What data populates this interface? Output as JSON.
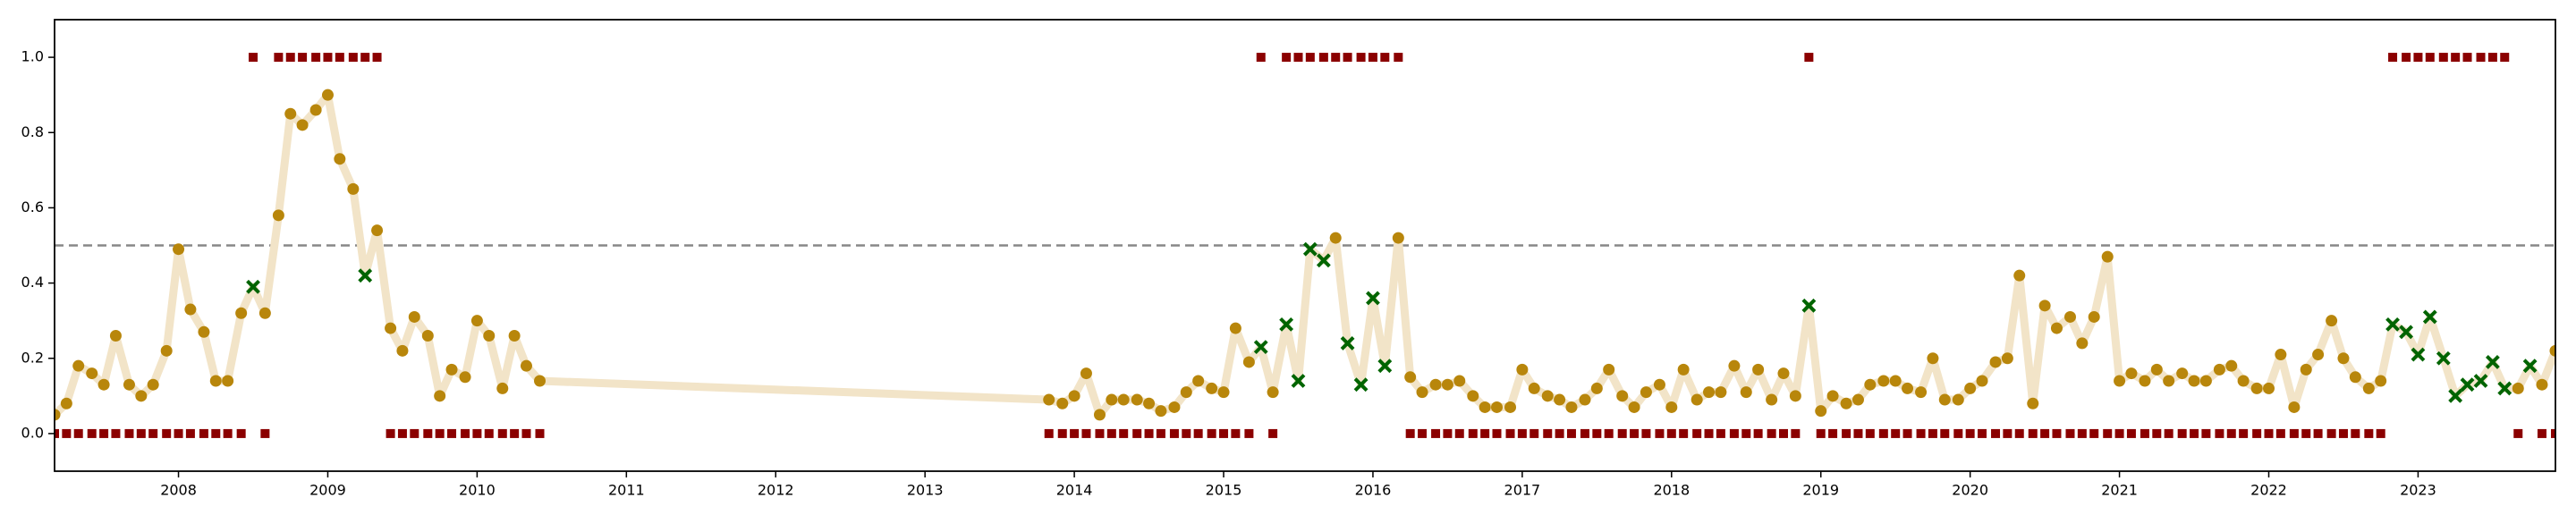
{
  "chart_data": {
    "type": "line",
    "x": [
      2007.17,
      2007.25,
      2007.33,
      2007.42,
      2007.5,
      2007.58,
      2007.67,
      2007.75,
      2007.83,
      2007.92,
      2008,
      2008.08,
      2008.17,
      2008.25,
      2008.33,
      2008.42,
      2008.5,
      2008.58,
      2008.67,
      2008.75,
      2008.83,
      2008.92,
      2009,
      2009.08,
      2009.17,
      2009.25,
      2009.33,
      2009.42,
      2009.5,
      2009.58,
      2009.67,
      2009.75,
      2009.83,
      2009.92,
      2010,
      2010.08,
      2010.17,
      2010.25,
      2010.33,
      2010.42,
      2013.83,
      2013.92,
      2014,
      2014.08,
      2014.17,
      2014.25,
      2014.33,
      2014.42,
      2014.5,
      2014.58,
      2014.67,
      2014.75,
      2014.83,
      2014.92,
      2015,
      2015.08,
      2015.17,
      2015.25,
      2015.33,
      2015.42,
      2015.5,
      2015.58,
      2015.67,
      2015.75,
      2015.83,
      2015.92,
      2016,
      2016.08,
      2016.17,
      2016.25,
      2016.33,
      2016.42,
      2016.5,
      2016.58,
      2016.67,
      2016.75,
      2016.83,
      2016.92,
      2017,
      2017.08,
      2017.17,
      2017.25,
      2017.33,
      2017.42,
      2017.5,
      2017.58,
      2017.67,
      2017.75,
      2017.83,
      2017.92,
      2018,
      2018.08,
      2018.17,
      2018.25,
      2018.33,
      2018.42,
      2018.5,
      2018.58,
      2018.67,
      2018.75,
      2018.83,
      2018.92,
      2019,
      2019.08,
      2019.17,
      2019.25,
      2019.33,
      2019.42,
      2019.5,
      2019.58,
      2019.67,
      2019.75,
      2019.83,
      2019.92,
      2020,
      2020.08,
      2020.17,
      2020.25,
      2020.33,
      2020.42,
      2020.5,
      2020.58,
      2020.67,
      2020.75,
      2020.83,
      2020.92,
      2021,
      2021.08,
      2021.17,
      2021.25,
      2021.33,
      2021.42,
      2021.5,
      2021.58,
      2021.67,
      2021.75,
      2021.83,
      2021.92,
      2022,
      2022.08,
      2022.17,
      2022.25,
      2022.33,
      2022.42,
      2022.5,
      2022.58,
      2022.67,
      2022.75,
      2022.83,
      2022.92,
      2023,
      2023.08,
      2023.17,
      2023.25,
      2023.33,
      2023.42,
      2023.5,
      2023.58,
      2023.67,
      2023.75,
      2023.83,
      2023.92
    ],
    "series": [
      {
        "color": "#f2e4c8",
        "line": true,
        "marker_colors": {
          "o": "#b8860b",
          "x": "#006400"
        },
        "values": [
          0.05,
          0.08,
          0.18,
          0.16,
          0.13,
          0.26,
          0.13,
          0.1,
          0.13,
          0.22,
          0.49,
          0.33,
          0.27,
          0.14,
          0.14,
          0.32,
          0.39,
          0.32,
          0.58,
          0.85,
          0.82,
          0.86,
          0.9,
          0.73,
          0.65,
          0.42,
          0.54,
          0.28,
          0.22,
          0.31,
          0.26,
          0.1,
          0.17,
          0.15,
          0.3,
          0.26,
          0.12,
          0.26,
          0.18,
          0.14,
          0.09,
          0.08,
          0.1,
          0.16,
          0.05,
          0.09,
          0.09,
          0.09,
          0.08,
          0.06,
          0.07,
          0.11,
          0.14,
          0.12,
          0.11,
          0.28,
          0.19,
          0.23,
          0.11,
          0.29,
          0.14,
          0.49,
          0.46,
          0.52,
          0.24,
          0.13,
          0.36,
          0.18,
          0.52,
          0.15,
          0.11,
          0.13,
          0.13,
          0.14,
          0.1,
          0.07,
          0.07,
          0.07,
          0.17,
          0.12,
          0.1,
          0.09,
          0.07,
          0.09,
          0.12,
          0.17,
          0.1,
          0.07,
          0.11,
          0.13,
          0.07,
          0.17,
          0.09,
          0.11,
          0.11,
          0.18,
          0.11,
          0.17,
          0.09,
          0.16,
          0.1,
          0.34,
          0.06,
          0.1,
          0.08,
          0.09,
          0.13,
          0.14,
          0.14,
          0.12,
          0.11,
          0.2,
          0.09,
          0.09,
          0.12,
          0.14,
          0.19,
          0.2,
          0.42,
          0.08,
          0.34,
          0.28,
          0.31,
          0.24,
          0.31,
          0.47,
          0.14,
          0.16,
          0.14,
          0.17,
          0.14,
          0.16,
          0.14,
          0.14,
          0.17,
          0.18,
          0.14,
          0.12,
          0.12,
          0.21,
          0.07,
          0.17,
          0.21,
          0.3,
          0.2,
          0.15,
          0.12,
          0.14,
          0.29,
          0.27,
          0.21,
          0.31,
          0.2,
          0.1,
          0.13,
          0.14,
          0.19,
          0.12,
          0.12,
          0.18,
          0.13,
          0.22
        ],
        "markers": [
          "o",
          "o",
          "o",
          "o",
          "o",
          "o",
          "o",
          "o",
          "o",
          "o",
          "o",
          "o",
          "o",
          "o",
          "o",
          "o",
          "x",
          "o",
          "o",
          "o",
          "o",
          "o",
          "o",
          "o",
          "o",
          "x",
          "o",
          "o",
          "o",
          "o",
          "o",
          "o",
          "o",
          "o",
          "o",
          "o",
          "o",
          "o",
          "o",
          "o",
          "o",
          "o",
          "o",
          "o",
          "o",
          "o",
          "o",
          "o",
          "o",
          "o",
          "o",
          "o",
          "o",
          "o",
          "o",
          "o",
          "o",
          "x",
          "o",
          "x",
          "x",
          "x",
          "x",
          "o",
          "x",
          "x",
          "x",
          "x",
          "o",
          "o",
          "o",
          "o",
          "o",
          "o",
          "o",
          "o",
          "o",
          "o",
          "o",
          "o",
          "o",
          "o",
          "o",
          "o",
          "o",
          "o",
          "o",
          "o",
          "o",
          "o",
          "o",
          "o",
          "o",
          "o",
          "o",
          "o",
          "o",
          "o",
          "o",
          "o",
          "o",
          "x",
          "o",
          "o",
          "o",
          "o",
          "o",
          "o",
          "o",
          "o",
          "o",
          "o",
          "o",
          "o",
          "o",
          "o",
          "o",
          "o",
          "o",
          "o",
          "o",
          "o",
          "o",
          "o",
          "o",
          "o",
          "o",
          "o",
          "o",
          "o",
          "o",
          "o",
          "o",
          "o",
          "o",
          "o",
          "o",
          "o",
          "o",
          "o",
          "o",
          "o",
          "o",
          "o",
          "o",
          "o",
          "o",
          "o",
          "x",
          "x",
          "x",
          "x",
          "x",
          "x",
          "x",
          "x",
          "x",
          "x",
          "o",
          "x",
          "o",
          "o"
        ]
      },
      {
        "color": "#8b0000",
        "line": false,
        "marker": "s",
        "values": [
          0,
          0,
          0,
          0,
          0,
          0,
          0,
          0,
          0,
          0,
          0,
          0,
          0,
          0,
          0,
          0,
          1,
          0,
          1,
          1,
          1,
          1,
          1,
          1,
          1,
          1,
          1,
          0,
          0,
          0,
          0,
          0,
          0,
          0,
          0,
          0,
          0,
          0,
          0,
          0,
          0,
          0,
          0,
          0,
          0,
          0,
          0,
          0,
          0,
          0,
          0,
          0,
          0,
          0,
          0,
          0,
          0,
          1,
          0,
          1,
          1,
          1,
          1,
          1,
          1,
          1,
          1,
          1,
          1,
          0,
          0,
          0,
          0,
          0,
          0,
          0,
          0,
          0,
          0,
          0,
          0,
          0,
          0,
          0,
          0,
          0,
          0,
          0,
          0,
          0,
          0,
          0,
          0,
          0,
          0,
          0,
          0,
          0,
          0,
          0,
          0,
          1,
          0,
          0,
          0,
          0,
          0,
          0,
          0,
          0,
          0,
          0,
          0,
          0,
          0,
          0,
          0,
          0,
          0,
          0,
          0,
          0,
          0,
          0,
          0,
          0,
          0,
          0,
          0,
          0,
          0,
          0,
          0,
          0,
          0,
          0,
          0,
          0,
          0,
          0,
          0,
          0,
          0,
          0,
          0,
          0,
          0,
          0,
          1,
          1,
          1,
          1,
          1,
          1,
          1,
          1,
          1,
          1,
          0,
          null,
          0,
          0
        ]
      }
    ],
    "reference_line": {
      "value": 0.5,
      "color": "#888888"
    },
    "xlim": [
      2007.17,
      2023.92
    ],
    "ylim": [
      -0.1,
      1.1
    ],
    "xticks": [
      2008,
      2009,
      2010,
      2011,
      2012,
      2013,
      2014,
      2015,
      2016,
      2017,
      2018,
      2019,
      2020,
      2021,
      2022,
      2023
    ],
    "yticks": [
      {
        "value": 0,
        "label": "0.0"
      },
      0.2,
      0.4,
      0.6,
      0.8,
      {
        "value": 1,
        "label": "1.0"
      }
    ]
  }
}
